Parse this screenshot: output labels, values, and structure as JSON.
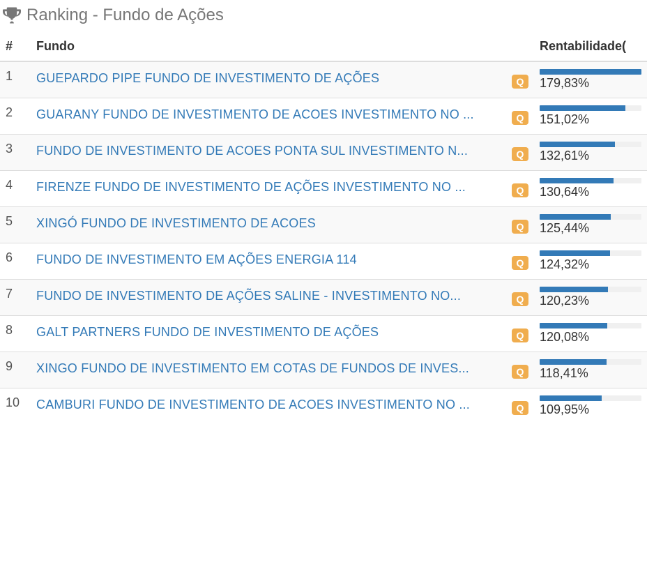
{
  "header": {
    "title": "Ranking - Fundo de Ações"
  },
  "table": {
    "columns": {
      "rank": "#",
      "fund": "Fundo",
      "return": "Rentabilidade("
    },
    "badge_label": "Q",
    "bar_color": "#337ab7",
    "bar_bg": "#f0f0f0",
    "badge_color": "#f0ad4e",
    "link_color": "#337ab7",
    "max_value": 179.83,
    "rows": [
      {
        "rank": "1",
        "name": "GUEPARDO PIPE FUNDO DE INVESTIMENTO DE AÇÕES",
        "return_label": "179,83%",
        "bar_pct": 100.0
      },
      {
        "rank": "2",
        "name": "GUARANY FUNDO DE INVESTIMENTO DE ACOES INVESTIMENTO NO ...",
        "return_label": "151,02%",
        "bar_pct": 83.98
      },
      {
        "rank": "3",
        "name": "FUNDO DE INVESTIMENTO DE ACOES PONTA SUL INVESTIMENTO N...",
        "return_label": "132,61%",
        "bar_pct": 73.74
      },
      {
        "rank": "4",
        "name": "FIRENZE FUNDO DE INVESTIMENTO DE AÇÕES INVESTIMENTO NO ...",
        "return_label": "130,64%",
        "bar_pct": 72.65
      },
      {
        "rank": "5",
        "name": "XINGÓ FUNDO DE INVESTIMENTO DE ACOES",
        "return_label": "125,44%",
        "bar_pct": 69.75
      },
      {
        "rank": "6",
        "name": "FUNDO DE INVESTIMENTO EM AÇÕES ENERGIA 114",
        "return_label": "124,32%",
        "bar_pct": 69.13
      },
      {
        "rank": "7",
        "name": "FUNDO DE INVESTIMENTO DE AÇÕES SALINE - INVESTIMENTO NO...",
        "return_label": "120,23%",
        "bar_pct": 66.86
      },
      {
        "rank": "8",
        "name": "GALT PARTNERS FUNDO DE INVESTIMENTO DE AÇÕES",
        "return_label": "120,08%",
        "bar_pct": 66.78
      },
      {
        "rank": "9",
        "name": "XINGO FUNDO DE INVESTIMENTO EM COTAS DE FUNDOS DE INVES...",
        "return_label": "118,41%",
        "bar_pct": 65.85
      },
      {
        "rank": "10",
        "name": "CAMBURI FUNDO DE INVESTIMENTO DE ACOES INVESTIMENTO NO ...",
        "return_label": "109,95%",
        "bar_pct": 61.14
      }
    ]
  }
}
